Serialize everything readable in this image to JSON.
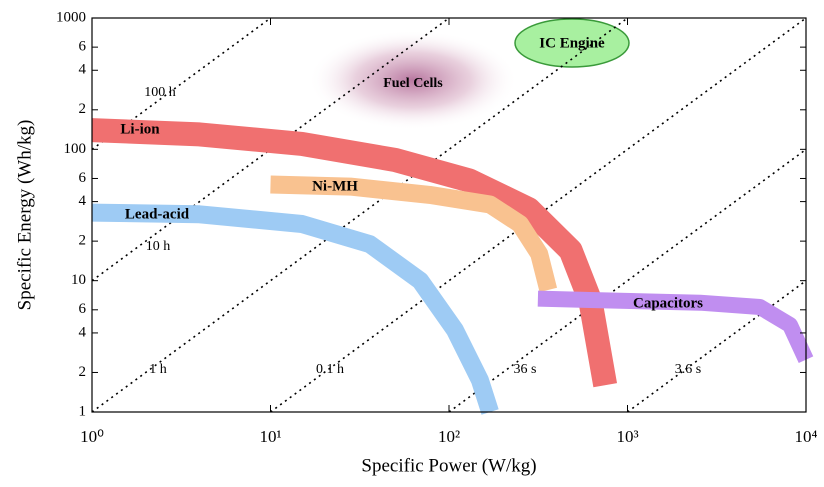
{
  "chart_data": {
    "type": "line",
    "xlabel": "Specific Power (W/kg)",
    "ylabel": "Specific Energy (Wh/kg)",
    "xscale": "log",
    "yscale": "log",
    "xlim": [
      1,
      10000
    ],
    "ylim": [
      1,
      1000
    ],
    "xticks": [
      {
        "value": 1,
        "label": "10⁰"
      },
      {
        "value": 10,
        "label": "10¹"
      },
      {
        "value": 100,
        "label": "10²"
      },
      {
        "value": 1000,
        "label": "10³"
      },
      {
        "value": 10000,
        "label": "10⁴"
      }
    ],
    "yticks": [
      1,
      2,
      4,
      6,
      10,
      {
        "value": 20,
        "label": "2"
      },
      {
        "value": 40,
        "label": "4"
      },
      {
        "value": 60,
        "label": "6"
      },
      100,
      {
        "value": 200,
        "label": "2"
      },
      {
        "value": 400,
        "label": "4"
      },
      {
        "value": 600,
        "label": "6"
      },
      1000
    ],
    "series": [
      {
        "name": "Li-ion",
        "color": "#f07070",
        "x": [
          1,
          4,
          15,
          50,
          130,
          280,
          480,
          620,
          750
        ],
        "values": [
          140,
          130,
          110,
          83,
          58,
          35,
          17,
          7,
          1.6
        ]
      },
      {
        "name": "Ni-MH",
        "color": "#f9c290",
        "x": [
          10,
          28,
          78,
          170,
          250,
          320,
          360
        ],
        "values": [
          54,
          52,
          45,
          38,
          27,
          16,
          8.5
        ]
      },
      {
        "name": "Lead-acid",
        "color": "#9ecbf4",
        "x": [
          1,
          4,
          15,
          36,
          69,
          108,
          149,
          170
        ],
        "values": [
          33,
          32,
          27,
          19,
          10,
          4.2,
          1.75,
          1
        ]
      },
      {
        "name": "Capacitors",
        "color": "#c08ef0",
        "x": [
          315,
          700,
          2550,
          5520,
          8130,
          10000
        ],
        "values": [
          7.3,
          7.1,
          6.8,
          6.3,
          4.6,
          2.5
        ]
      }
    ],
    "annotations": [
      "Fuel Cells",
      "IC Engine",
      "100 h",
      "10 h",
      "1 h",
      "0.1 h",
      "36 s",
      "3.6 s"
    ]
  }
}
